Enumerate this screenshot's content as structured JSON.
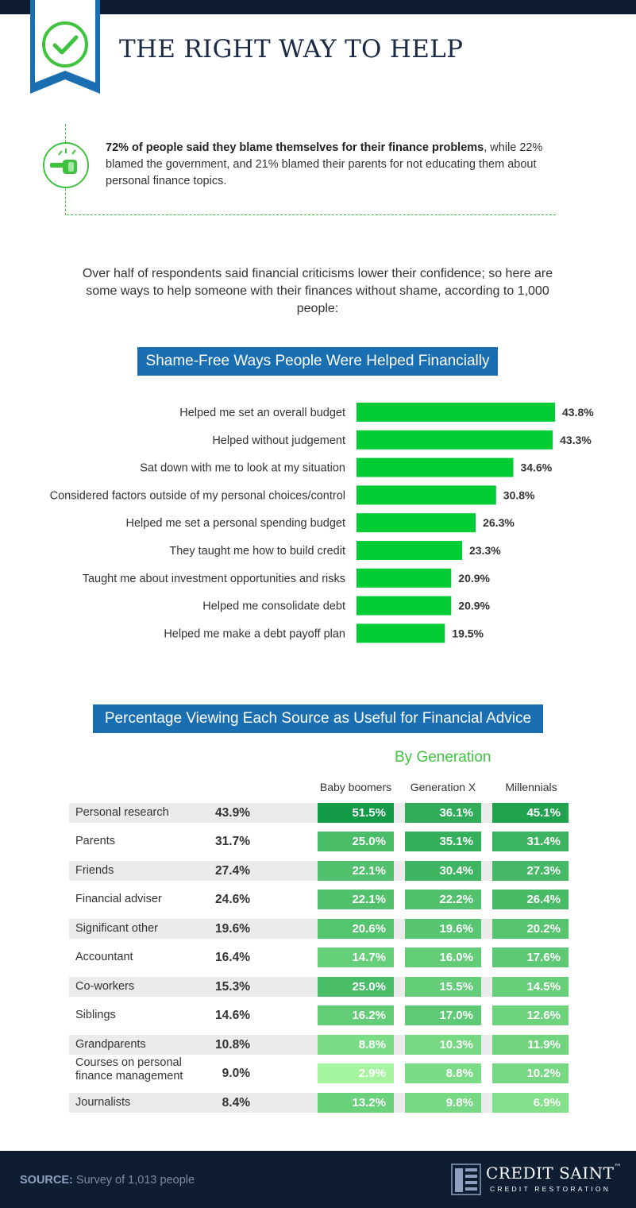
{
  "header": {
    "title": "THE RIGHT WAY TO HELP",
    "icon": "check-circle-icon"
  },
  "stat": {
    "bold": "72% of people said they blame themselves for their finance problems",
    "rest": ", while 22% blamed the government, and 21% blamed their parents for not educating them about personal finance topics.",
    "icon": "pointing-fist-icon"
  },
  "intro": "Over half of respondents said financial criticisms lower their confidence; so here are some ways to help someone with their finances without shame, according to 1,000 people:",
  "colors": {
    "navy": "#0f1d33",
    "blue": "#1a6fb3",
    "green": "#00cc33",
    "accent_green": "#3fc33f"
  },
  "chart_data": [
    {
      "type": "bar",
      "orientation": "horizontal",
      "title": "Shame-Free Ways People Were Helped Financially",
      "categories": [
        "Helped me set an overall budget",
        "Helped without judgement",
        "Sat down with me to look at my situation",
        "Considered factors outside of my personal choices/control",
        "Helped me set a personal spending budget",
        "They taught me how to build credit",
        "Taught me about investment opportunities and risks",
        "Helped me consolidate debt",
        "Helped me make a debt payoff plan"
      ],
      "values": [
        43.8,
        43.3,
        34.6,
        30.8,
        26.3,
        23.3,
        20.9,
        20.9,
        19.5
      ],
      "value_labels": [
        "43.8%",
        "43.3%",
        "34.6%",
        "30.8%",
        "26.3%",
        "23.3%",
        "20.9%",
        "20.9%",
        "19.5%"
      ],
      "xlim": [
        0,
        43.8
      ],
      "grid": false,
      "color": "#00cc33"
    },
    {
      "type": "table",
      "title": "Percentage Viewing Each Source as Useful for Financial Advice",
      "group_title": "By Generation",
      "columns": [
        "Baby boomers",
        "Generation X",
        "Millennials"
      ],
      "rows": [
        {
          "source": "Personal research",
          "overall": "43.9%",
          "values": [
            "51.5%",
            "36.1%",
            "45.1%"
          ]
        },
        {
          "source": "Parents",
          "overall": "31.7%",
          "values": [
            "25.0%",
            "35.1%",
            "31.4%"
          ]
        },
        {
          "source": "Friends",
          "overall": "27.4%",
          "values": [
            "22.1%",
            "30.4%",
            "27.3%"
          ]
        },
        {
          "source": "Financial adviser",
          "overall": "24.6%",
          "values": [
            "22.1%",
            "22.2%",
            "26.4%"
          ]
        },
        {
          "source": "Significant other",
          "overall": "19.6%",
          "values": [
            "20.6%",
            "19.6%",
            "20.2%"
          ]
        },
        {
          "source": "Accountant",
          "overall": "16.4%",
          "values": [
            "14.7%",
            "16.0%",
            "17.6%"
          ]
        },
        {
          "source": "Co-workers",
          "overall": "15.3%",
          "values": [
            "25.0%",
            "15.5%",
            "14.5%"
          ]
        },
        {
          "source": "Siblings",
          "overall": "14.6%",
          "values": [
            "16.2%",
            "17.0%",
            "12.6%"
          ]
        },
        {
          "source": "Grandparents",
          "overall": "10.8%",
          "values": [
            "8.8%",
            "10.3%",
            "11.9%"
          ]
        },
        {
          "source": "Courses on personal finance management",
          "overall": "9.0%",
          "values": [
            "2.9%",
            "8.8%",
            "10.2%"
          ]
        },
        {
          "source": "Journalists",
          "overall": "8.4%",
          "values": [
            "13.2%",
            "9.8%",
            "6.9%"
          ]
        }
      ],
      "color_scale": {
        "low": "#a4f59e",
        "high": "#149b48"
      }
    }
  ],
  "footer": {
    "source_label": "SOURCE:",
    "source_text": " Survey of 1,013 people",
    "logo_name": "CREDIT SAINT",
    "logo_tm": "™",
    "logo_tagline": "CREDIT RESTORATION",
    "logo_icon": "credit-saint-logo-icon"
  }
}
